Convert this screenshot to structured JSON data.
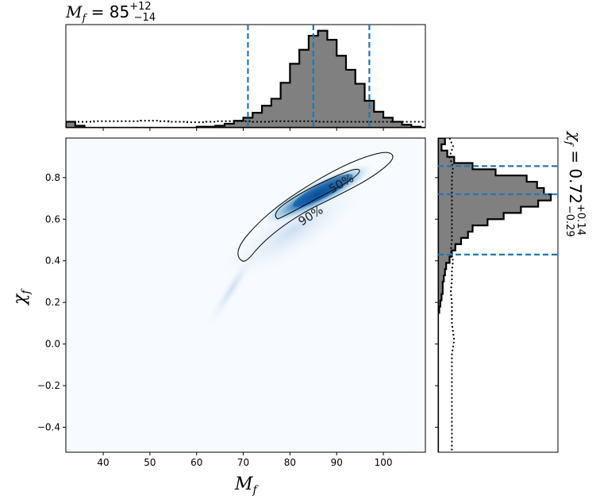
{
  "chart_data": {
    "type": "corner",
    "top_title": {
      "main": "M",
      "sub": "f",
      "eq": " = 85",
      "sup": "+12",
      "low": "−14"
    },
    "right_title": {
      "main": "χ",
      "sub": "f",
      "eq": " = 0.72",
      "sup": "+0.14",
      "low": "−0.29"
    },
    "xlabel": {
      "main": "M",
      "sub": "f"
    },
    "ylabel": {
      "main": "χ",
      "sub": "f"
    },
    "xlim": [
      32,
      109
    ],
    "ylim": [
      -0.52,
      0.99
    ],
    "xticks": [
      40,
      50,
      60,
      70,
      80,
      90,
      100
    ],
    "yticks": [
      0.8,
      0.6,
      0.4,
      0.2,
      0.0,
      -0.2,
      -0.4
    ],
    "ytick_labels": [
      "0.8",
      "0.6",
      "0.4",
      "0.2",
      "0.0",
      "−0.2",
      "−0.4"
    ],
    "contour_labels": [
      "90%",
      "50%"
    ],
    "mf_quantiles": [
      71,
      85,
      97
    ],
    "chi_quantiles": [
      0.43,
      0.72,
      0.855
    ],
    "mf_hist": {
      "edges": [
        32,
        34,
        36,
        38,
        40,
        42,
        44,
        46,
        48,
        50,
        52,
        54,
        56,
        58,
        60,
        62,
        64,
        66,
        68,
        70,
        72,
        74,
        76,
        78,
        80,
        82,
        84,
        86,
        88,
        90,
        92,
        94,
        96,
        98,
        100,
        102,
        104,
        106,
        108,
        109
      ],
      "counts": [
        0.06,
        0.02,
        0,
        0,
        0,
        0,
        0,
        0,
        0,
        0,
        0,
        0,
        0,
        0,
        0.01,
        0.01,
        0.02,
        0.04,
        0.07,
        0.1,
        0.15,
        0.22,
        0.29,
        0.45,
        0.64,
        0.78,
        0.92,
        0.97,
        0.88,
        0.72,
        0.58,
        0.44,
        0.27,
        0.16,
        0.1,
        0.06,
        0.03,
        0.01,
        0
      ]
    },
    "mf_prior": [
      0.06,
      0.06,
      0.06,
      0.065,
      0.065,
      0.065,
      0.065,
      0.065,
      0.07,
      0.07,
      0.065,
      0.06,
      0.06,
      0.055,
      0.055,
      0.06,
      0.065,
      0.065,
      0.065,
      0.065,
      0.06,
      0.06,
      0.065,
      0.065,
      0.065,
      0.065,
      0.065,
      0.06,
      0.06,
      0.06,
      0.06,
      0.06,
      0.06,
      0.06,
      0.06,
      0.06,
      0.06,
      0.06,
      0.06
    ],
    "chi_hist": {
      "edges": [
        0.99,
        0.96,
        0.93,
        0.9,
        0.87,
        0.84,
        0.81,
        0.78,
        0.75,
        0.72,
        0.69,
        0.66,
        0.63,
        0.6,
        0.57,
        0.54,
        0.51,
        0.48,
        0.45,
        0.42,
        0.39,
        0.36,
        0.33,
        0.3,
        0.27,
        0.24,
        0.21,
        0.18,
        0.15,
        -0.52
      ],
      "counts": [
        0.06,
        0.03,
        0.08,
        0.14,
        0.3,
        0.5,
        0.77,
        0.86,
        0.92,
        0.98,
        0.87,
        0.72,
        0.57,
        0.43,
        0.3,
        0.26,
        0.2,
        0.15,
        0.12,
        0.1,
        0.07,
        0.06,
        0.05,
        0.04,
        0.04,
        0.03,
        0.02,
        0.01,
        0
      ]
    },
    "chi_prior": [
      [
        0.99,
        0.1
      ],
      [
        0.95,
        0.13
      ],
      [
        0.9,
        0.1
      ],
      [
        0.85,
        0.13
      ],
      [
        0.8,
        0.12
      ],
      [
        0.7,
        0.12
      ],
      [
        0.6,
        0.12
      ],
      [
        0.5,
        0.12
      ],
      [
        0.45,
        0.11
      ],
      [
        0.4,
        0.13
      ],
      [
        0.35,
        0.12
      ],
      [
        0.3,
        0.12
      ],
      [
        0.25,
        0.11
      ],
      [
        0.2,
        0.12
      ],
      [
        0.1,
        0.12
      ],
      [
        0.02,
        0.14
      ],
      [
        -0.05,
        0.12
      ],
      [
        -0.15,
        0.12
      ],
      [
        -0.25,
        0.12
      ],
      [
        -0.35,
        0.12
      ],
      [
        -0.45,
        0.12
      ],
      [
        -0.52,
        0.12
      ]
    ]
  },
  "colors": {
    "hist_fill": "#808080",
    "quantile_line": "#1f77b4",
    "density_dark": "#08519c",
    "density_light": "#f7fbff"
  }
}
